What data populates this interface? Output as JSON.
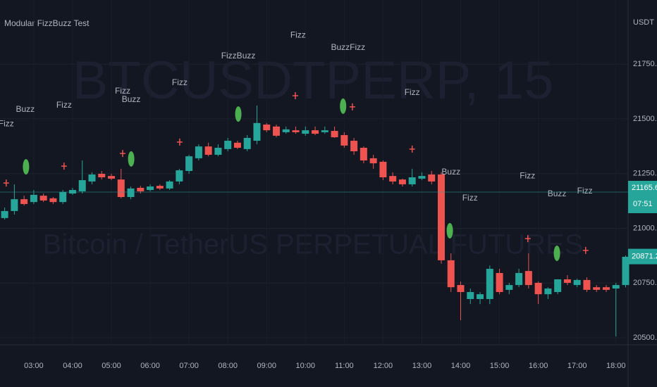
{
  "chart_data": {
    "type": "candlestick",
    "title": "Modular FizzBuzz Test",
    "currency": "USDT",
    "watermark": "BTCUSDTPERP, 15",
    "subtitle": "Bitcoin / TetherUS PERPETUAL FUTURES",
    "up_color": "#26a69a",
    "down_color": "#ef5350",
    "x": [
      2.25,
      2.5,
      2.75,
      3,
      3.25,
      3.5,
      3.75,
      4,
      4.25,
      4.5,
      4.75,
      5,
      5.25,
      5.5,
      5.75,
      6,
      6.25,
      6.5,
      6.75,
      7,
      7.25,
      7.5,
      7.75,
      8,
      8.25,
      8.5,
      8.75,
      9,
      9.25,
      9.5,
      9.75,
      10,
      10.25,
      10.5,
      10.75,
      11,
      11.25,
      11.5,
      11.75,
      12,
      12.25,
      12.5,
      12.75,
      13,
      13.25,
      13.5,
      13.75,
      14,
      14.25,
      14.5,
      14.75,
      15,
      15.25,
      15.5,
      15.75,
      16,
      16.25,
      16.5,
      16.75,
      17,
      17.25,
      17.5,
      17.75,
      18,
      18.25
    ],
    "open": [
      21047,
      21079,
      21133,
      21120,
      21149,
      21137,
      21120,
      21159,
      21169,
      21214,
      21249,
      21239,
      21223,
      21143,
      21185,
      21175,
      21194,
      21182,
      21214,
      21262,
      21320,
      21374,
      21336,
      21362,
      21391,
      21362,
      21400,
      21474,
      21465,
      21439,
      21448,
      21432,
      21448,
      21439,
      21445,
      21426,
      21400,
      21368,
      21320,
      21304,
      21239,
      21223,
      21201,
      21227,
      21246,
      21246,
      20854,
      20741,
      20677,
      20677,
      20677,
      20796,
      20719,
      20741,
      20805,
      20751,
      20699,
      20709,
      20767,
      20741,
      20764,
      20731,
      20731,
      20725,
      20741
    ],
    "high": [
      21095,
      21201,
      21149,
      21175,
      21159,
      21143,
      21175,
      21185,
      21310,
      21256,
      21262,
      21249,
      21272,
      21191,
      21194,
      21201,
      21201,
      21220,
      21272,
      21336,
      21384,
      21391,
      21384,
      21413,
      21400,
      21426,
      21561,
      21481,
      21474,
      21465,
      21465,
      21465,
      21465,
      21465,
      21465,
      21439,
      21413,
      21374,
      21336,
      21310,
      21256,
      21227,
      21272,
      21256,
      21262,
      21256,
      20886,
      20757,
      20725,
      20709,
      20830,
      20815,
      20751,
      20815,
      20886,
      20757,
      20731,
      20767,
      20786,
      20770,
      20776,
      20741,
      20741,
      20751,
      20876
    ],
    "low": [
      21040,
      21063,
      21104,
      21111,
      21120,
      21111,
      21111,
      21153,
      21159,
      21201,
      21223,
      21220,
      21137,
      21133,
      21159,
      21169,
      21175,
      21175,
      21201,
      21249,
      21310,
      21329,
      21329,
      21352,
      21362,
      21352,
      21384,
      21439,
      21416,
      21432,
      21432,
      21423,
      21426,
      21432,
      21413,
      21368,
      21336,
      21297,
      21272,
      21220,
      21201,
      21191,
      21191,
      21220,
      21201,
      20838,
      20709,
      20580,
      20654,
      20654,
      20654,
      20699,
      20699,
      20731,
      20725,
      20654,
      20677,
      20699,
      20741,
      20731,
      20709,
      20709,
      20709,
      20506,
      20730
    ],
    "close": [
      21079,
      21133,
      21111,
      21153,
      21127,
      21120,
      21166,
      21175,
      21220,
      21246,
      21233,
      21227,
      21143,
      21182,
      21169,
      21191,
      21182,
      21214,
      21265,
      21329,
      21374,
      21336,
      21368,
      21400,
      21368,
      21413,
      21481,
      21448,
      21423,
      21452,
      21439,
      21448,
      21432,
      21448,
      21416,
      21378,
      21352,
      21310,
      21297,
      21233,
      21214,
      21201,
      21233,
      21239,
      21214,
      20854,
      20731,
      20709,
      20709,
      20699,
      20815,
      20709,
      20741,
      20796,
      20741,
      20699,
      20725,
      20767,
      20751,
      20764,
      20719,
      20719,
      20719,
      20741,
      20870
    ],
    "xlim": [
      2.13,
      18.35
    ],
    "ylim": [
      20468,
      22043
    ],
    "xticks": [
      {
        "value": 3,
        "label": "03:00"
      },
      {
        "value": 4,
        "label": "04:00"
      },
      {
        "value": 5,
        "label": "05:00"
      },
      {
        "value": 6,
        "label": "06:00"
      },
      {
        "value": 7,
        "label": "07:00"
      },
      {
        "value": 8,
        "label": "08:00"
      },
      {
        "value": 9,
        "label": "09:00"
      },
      {
        "value": 10,
        "label": "10:00"
      },
      {
        "value": 11,
        "label": "11:00"
      },
      {
        "value": 12,
        "label": "12:00"
      },
      {
        "value": 13,
        "label": "13:00"
      },
      {
        "value": 14,
        "label": "14:00"
      },
      {
        "value": 15,
        "label": "15:00"
      },
      {
        "value": 16,
        "label": "16:00"
      },
      {
        "value": 17,
        "label": "17:00"
      },
      {
        "value": 18,
        "label": "18:00"
      }
    ],
    "yticks": [
      {
        "value": 20500,
        "label": "20500.0"
      },
      {
        "value": 20750,
        "label": "20750.0"
      },
      {
        "value": 21000,
        "label": "21000.0"
      },
      {
        "value": 21250,
        "label": "21250.0"
      },
      {
        "value": 21500,
        "label": "21500.0"
      },
      {
        "value": 21750,
        "label": "21750.0"
      }
    ],
    "grid": true,
    "annotations": [
      {
        "text": "Fizz",
        "x": 2.29,
        "y": 21477
      },
      {
        "text": "Buzz",
        "x": 2.78,
        "y": 21542
      },
      {
        "text": "Fizz",
        "x": 3.78,
        "y": 21561
      },
      {
        "text": "Fizz",
        "x": 5.29,
        "y": 21625
      },
      {
        "text": "Buzz",
        "x": 5.51,
        "y": 21587
      },
      {
        "text": "Fizz",
        "x": 6.76,
        "y": 21664
      },
      {
        "text": "FizzBuzz",
        "x": 8.27,
        "y": 21786
      },
      {
        "text": "Fizz",
        "x": 9.81,
        "y": 21882
      },
      {
        "text": "BuzzFizz",
        "x": 11.1,
        "y": 21825
      },
      {
        "text": "Fizz",
        "x": 12.75,
        "y": 21619
      },
      {
        "text": "Buzz",
        "x": 13.75,
        "y": 21256
      },
      {
        "text": "Fizz",
        "x": 14.24,
        "y": 21137
      },
      {
        "text": "Fizz",
        "x": 15.72,
        "y": 21239
      },
      {
        "text": "Buzz",
        "x": 16.48,
        "y": 21156
      },
      {
        "text": "Fizz",
        "x": 17.2,
        "y": 21169
      }
    ],
    "circles": {
      "color": "#4caf50",
      "x": [
        2.8,
        5.51,
        8.27,
        10.97,
        13.72,
        16.48
      ],
      "y": [
        21281,
        21317,
        21522,
        21558,
        20989,
        20886
      ]
    },
    "crosses": {
      "color": "#ef5350",
      "x": [
        2.29,
        3.78,
        5.29,
        6.76,
        9.74,
        11.21,
        12.75,
        15.73,
        17.22
      ],
      "y": [
        21207,
        21284,
        21342,
        21394,
        21606,
        21555,
        21362,
        20953,
        20899
      ]
    },
    "last_price": 21165.6,
    "countdown": "07:51",
    "second_price": 20871.2
  }
}
